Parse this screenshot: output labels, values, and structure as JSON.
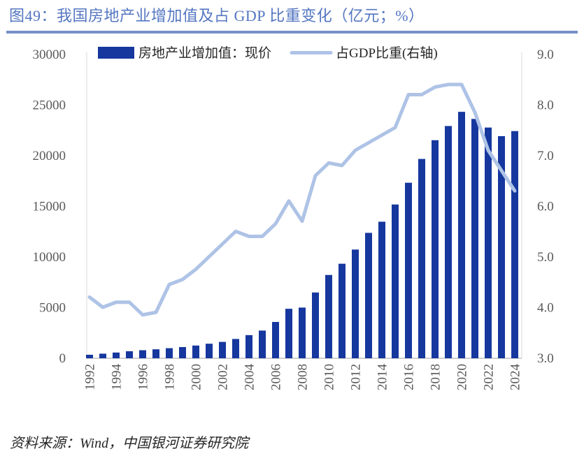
{
  "figure": {
    "title": "图49：我国房地产业增加值及占 GDP 比重变化（亿元；%）",
    "source": "资料来源：Wind，中国银河证券研究院"
  },
  "legend": {
    "bar_label": "房地产业增加值：现价",
    "line_label": "占GDP比重(右轴)"
  },
  "colors": {
    "bar": "#16379E",
    "line": "#AEC3E6",
    "title": "#5476C1",
    "rule": "#7690CA",
    "axis_text": "#595959",
    "text": "#262626",
    "border": "#D9D9D9",
    "axis_line": "#BFBFBF"
  },
  "chart_data": {
    "type": "bar",
    "title": "我国房地产业增加值及占GDP比重变化",
    "units": {
      "bars": "亿元",
      "line": "%"
    },
    "categories": [
      1992,
      1993,
      1994,
      1995,
      1996,
      1997,
      1998,
      1999,
      2000,
      2001,
      2002,
      2003,
      2004,
      2005,
      2006,
      2007,
      2008,
      2009,
      2010,
      2011,
      2012,
      2013,
      2014,
      2015,
      2016,
      2017,
      2018,
      2019,
      2020,
      2021,
      2022,
      2023,
      2024
    ],
    "series": [
      {
        "name": "房地产业增加值：现价",
        "type": "bar",
        "axis": "left",
        "values": [
          310,
          420,
          530,
          660,
          760,
          850,
          960,
          1070,
          1220,
          1400,
          1580,
          1870,
          2250,
          2700,
          3550,
          4850,
          4970,
          6460,
          8190,
          9300,
          10700,
          12350,
          13450,
          15150,
          17300,
          19650,
          21500,
          22900,
          24300,
          23600,
          22750,
          21900,
          22400
        ]
      },
      {
        "name": "占GDP比重(右轴)",
        "type": "line",
        "axis": "right",
        "values": [
          4.2,
          4.0,
          4.1,
          4.1,
          3.85,
          3.9,
          4.45,
          4.55,
          4.75,
          5.0,
          5.25,
          5.5,
          5.4,
          5.4,
          5.65,
          6.1,
          5.7,
          6.6,
          6.85,
          6.8,
          7.1,
          7.25,
          7.4,
          7.55,
          8.2,
          8.2,
          8.35,
          8.4,
          8.4,
          7.85,
          7.1,
          6.7,
          6.3
        ]
      }
    ],
    "left_axis": {
      "min": 0,
      "max": 30000,
      "tick_labels": [
        "0",
        "5000",
        "10000",
        "15000",
        "20000",
        "25000",
        "30000"
      ]
    },
    "right_axis": {
      "min": 3.0,
      "max": 9.0,
      "tick_labels": [
        "3.0",
        "4.0",
        "5.0",
        "6.0",
        "7.0",
        "8.0",
        "9.0"
      ]
    },
    "x_tick_labels": [
      "1992",
      "1994",
      "1996",
      "1998",
      "2000",
      "2002",
      "2004",
      "2006",
      "2008",
      "2010",
      "2012",
      "2014",
      "2016",
      "2018",
      "2020",
      "2022",
      "2024"
    ],
    "grid": false,
    "legend_position": "top"
  }
}
